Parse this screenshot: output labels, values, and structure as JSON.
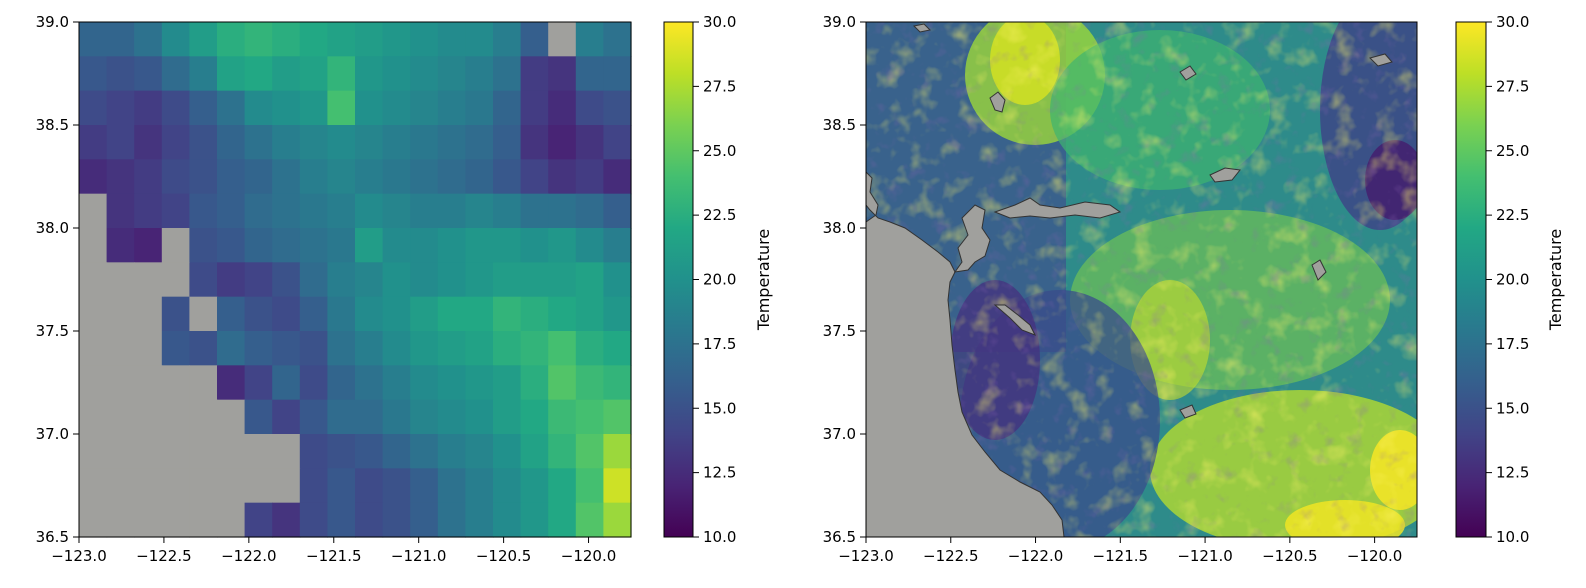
{
  "chart_data": [
    {
      "type": "heatmap",
      "name": "coarse-resolution temperature map",
      "title": "",
      "xlabel": "",
      "ylabel": "",
      "xlim": [
        -123.0,
        -119.75
      ],
      "ylim": [
        36.5,
        39.0
      ],
      "x_ticks": [
        "−123.0",
        "−122.5",
        "−122.0",
        "−121.5",
        "−121.0",
        "−120.5",
        "−120.0"
      ],
      "x_tick_values": [
        -123.0,
        -122.5,
        -122.0,
        -121.5,
        -121.0,
        -120.5,
        -120.0
      ],
      "y_ticks": [
        "36.5",
        "37.0",
        "37.5",
        "38.0",
        "38.5",
        "39.0"
      ],
      "y_tick_values": [
        36.5,
        37.0,
        37.5,
        38.0,
        38.5,
        39.0
      ],
      "grid_note": "approx. 0.1667 deg cells, 15 rows (north to south) x 20 columns (west to east); null = masked (ocean, gray)",
      "values": [
        [
          16.5,
          16.5,
          17.5,
          19.5,
          21.0,
          22.5,
          23.0,
          22.5,
          22.0,
          21.5,
          21.0,
          20.5,
          20.0,
          19.5,
          19.5,
          18.5,
          16.0,
          null,
          18.5,
          17.5
        ],
        [
          15.5,
          15.0,
          15.5,
          17.0,
          18.5,
          21.5,
          22.0,
          21.0,
          21.5,
          23.0,
          20.5,
          20.0,
          19.5,
          19.0,
          18.5,
          17.5,
          13.5,
          13.0,
          16.5,
          16.5
        ],
        [
          14.5,
          14.0,
          13.5,
          14.5,
          16.0,
          17.5,
          19.5,
          20.0,
          20.5,
          24.0,
          20.0,
          19.5,
          19.0,
          18.5,
          18.0,
          16.5,
          13.5,
          12.5,
          14.5,
          15.0
        ],
        [
          13.5,
          14.0,
          13.0,
          14.0,
          15.0,
          16.5,
          17.5,
          18.5,
          19.0,
          19.5,
          19.0,
          18.5,
          18.0,
          17.5,
          17.0,
          16.0,
          13.0,
          12.0,
          13.0,
          14.0
        ],
        [
          12.5,
          13.0,
          13.5,
          14.5,
          15.0,
          16.0,
          16.5,
          17.5,
          18.5,
          19.0,
          18.5,
          18.0,
          17.5,
          17.0,
          16.5,
          15.5,
          14.0,
          13.0,
          13.5,
          12.5
        ],
        [
          null,
          13.0,
          13.5,
          14.0,
          15.5,
          16.0,
          17.0,
          17.5,
          18.0,
          18.5,
          19.5,
          19.0,
          18.5,
          18.5,
          19.0,
          18.5,
          17.5,
          17.5,
          17.0,
          16.0
        ],
        [
          null,
          12.5,
          12.0,
          null,
          15.0,
          15.5,
          16.5,
          17.0,
          17.5,
          18.0,
          21.0,
          19.5,
          19.5,
          20.0,
          20.5,
          20.5,
          20.0,
          20.5,
          19.5,
          18.5
        ],
        [
          null,
          null,
          null,
          null,
          14.5,
          13.5,
          14.0,
          15.0,
          17.0,
          18.5,
          19.0,
          20.0,
          19.5,
          20.0,
          20.5,
          21.0,
          21.0,
          21.0,
          21.5,
          20.0
        ],
        [
          null,
          null,
          null,
          15.0,
          null,
          16.0,
          15.0,
          14.5,
          16.0,
          18.0,
          19.5,
          20.0,
          21.0,
          22.0,
          22.0,
          23.0,
          22.5,
          22.0,
          21.5,
          20.5
        ],
        [
          null,
          null,
          null,
          15.5,
          15.0,
          17.0,
          16.0,
          15.5,
          15.0,
          17.5,
          18.5,
          19.5,
          20.5,
          21.0,
          21.5,
          22.5,
          23.0,
          24.0,
          22.5,
          22.0
        ],
        [
          null,
          null,
          null,
          null,
          null,
          12.5,
          14.0,
          16.5,
          14.5,
          16.5,
          17.5,
          18.5,
          19.5,
          20.0,
          20.5,
          21.0,
          22.5,
          24.5,
          23.5,
          23.0
        ],
        [
          null,
          null,
          null,
          null,
          null,
          null,
          15.5,
          14.0,
          15.5,
          17.0,
          17.0,
          18.0,
          19.0,
          19.5,
          20.0,
          21.0,
          22.0,
          23.5,
          24.0,
          24.5
        ],
        [
          null,
          null,
          null,
          null,
          null,
          null,
          null,
          null,
          14.5,
          15.0,
          15.5,
          16.5,
          17.5,
          18.5,
          19.0,
          20.0,
          21.5,
          23.0,
          24.5,
          27.0
        ],
        [
          null,
          null,
          null,
          null,
          null,
          null,
          null,
          null,
          14.5,
          15.5,
          14.5,
          15.0,
          16.0,
          17.5,
          18.5,
          19.5,
          20.5,
          22.0,
          24.0,
          28.5
        ],
        [
          null,
          null,
          null,
          null,
          null,
          null,
          14.0,
          13.0,
          14.5,
          15.5,
          14.5,
          15.0,
          16.0,
          17.5,
          18.5,
          19.5,
          20.5,
          22.0,
          24.5,
          27.0
        ]
      ],
      "colorbar": {
        "label": "Temperature",
        "range": [
          10.0,
          30.0
        ],
        "ticks": [
          "10.0",
          "12.5",
          "15.0",
          "17.5",
          "20.0",
          "22.5",
          "25.0",
          "27.5",
          "30.0"
        ],
        "tick_values": [
          10.0,
          12.5,
          15.0,
          17.5,
          20.0,
          22.5,
          25.0,
          27.5,
          30.0
        ],
        "colormap": "viridis"
      },
      "mask_color": "#a0a09d"
    },
    {
      "type": "heatmap",
      "name": "high-resolution temperature map",
      "title": "",
      "xlabel": "",
      "ylabel": "",
      "xlim": [
        -123.0,
        -119.75
      ],
      "ylim": [
        36.5,
        39.0
      ],
      "x_ticks": [
        "−123.0",
        "−122.5",
        "−122.0",
        "−121.5",
        "−121.0",
        "−120.5",
        "−120.0"
      ],
      "x_tick_values": [
        -123.0,
        -122.5,
        -122.0,
        -121.5,
        -121.0,
        -120.5,
        -120.0
      ],
      "y_ticks": [
        "36.5",
        "37.0",
        "37.5",
        "38.0",
        "38.5",
        "39.0"
      ],
      "y_tick_values": [
        36.5,
        37.0,
        37.5,
        38.0,
        38.5,
        39.0
      ],
      "grid_note": "high-resolution field (~0.02 deg); ocean masked gray west of coastline; small gray water bodies (San Pablo Bay, Suisun Bay, reservoirs) with dark outlines",
      "colorbar": {
        "label": "Temperature",
        "range": [
          10.0,
          30.0
        ],
        "ticks": [
          "10.0",
          "12.5",
          "15.0",
          "17.5",
          "20.0",
          "22.5",
          "25.0",
          "27.5",
          "30.0"
        ],
        "tick_values": [
          10.0,
          12.5,
          15.0,
          17.5,
          20.0,
          22.5,
          25.0,
          27.5,
          30.0
        ],
        "colormap": "viridis"
      },
      "mask_color": "#a0a09d"
    }
  ]
}
